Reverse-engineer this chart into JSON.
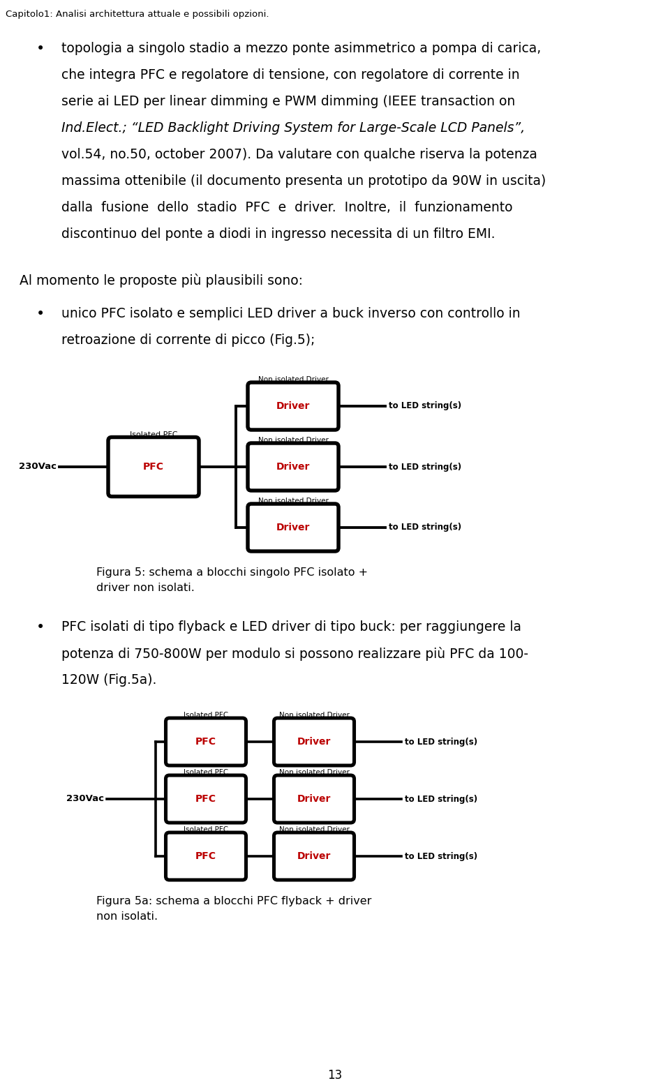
{
  "header": "Capitolo1: Analisi architettura attuale e possibili opzioni.",
  "bullet1_lines": [
    [
      "topologia a singolo stadio a mezzo ponte asimmetrico a pompa di carica,",
      false
    ],
    [
      "che integra PFC e regolatore di tensione, con regolatore di corrente in",
      false
    ],
    [
      "serie ai LED per linear dimming e PWM dimming (IEEE transaction on",
      false
    ],
    [
      "Ind.Elect.; “LED Backlight Driving System for Large-Scale LCD Panels”,",
      true
    ],
    [
      "vol.54, no.50, october 2007). Da valutare con qualche riserva la potenza",
      false
    ],
    [
      "massima ottenibile (il documento presenta un prototipo da 90W in uscita)",
      false
    ],
    [
      "dalla  fusione  dello  stadio  PFC  e  driver.  Inoltre,  il  funzionamento",
      false
    ],
    [
      "discontinuo del ponte a diodi in ingresso necessita di un filtro EMI.",
      false
    ]
  ],
  "section2_text": "Al momento le proposte più plausibili sono:",
  "bullet2_lines": [
    "unico PFC isolato e semplici LED driver a buck inverso con controllo in",
    "retroazione di corrente di picco (Fig.5);"
  ],
  "fig5_caption_lines": [
    "Figura 5: schema a blocchi singolo PFC isolato +",
    "driver non isolati."
  ],
  "bullet3_lines": [
    "PFC isolati di tipo flyback e LED driver di tipo buck: per raggiungere la",
    "potenza di 750-800W per modulo si possono realizzare più PFC da 100-",
    "120W (Fig.5a)."
  ],
  "fig5a_caption_lines": [
    "Figura 5a: schema a blocchi PFC flyback + driver",
    "non isolati."
  ],
  "page_number": "13",
  "bg_color": "#ffffff",
  "text_color": "#000000",
  "red_color": "#bb0000",
  "diag_color": "#000000"
}
